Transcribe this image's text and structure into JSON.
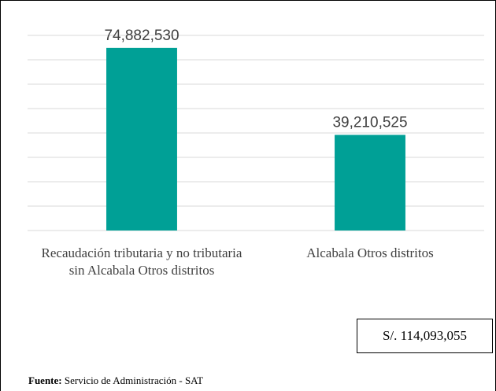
{
  "chart_data": {
    "type": "bar",
    "categories": [
      "Recaudación tributaria y no tributaria sin Alcabala Otros distritos",
      "Alcabala Otros distritos"
    ],
    "values": [
      74882530,
      39210525
    ],
    "value_labels": [
      "74,882,530",
      "39,210,525"
    ],
    "color": "#00a096",
    "ylim": [
      0,
      80000000
    ],
    "yticks": [
      0,
      10000000,
      20000000,
      30000000,
      40000000,
      50000000,
      60000000,
      70000000,
      80000000
    ],
    "grid": true,
    "annotation": "S/. 114,093,055",
    "source_label": "Fuente:",
    "source": "Servicio de Administración - SAT"
  }
}
